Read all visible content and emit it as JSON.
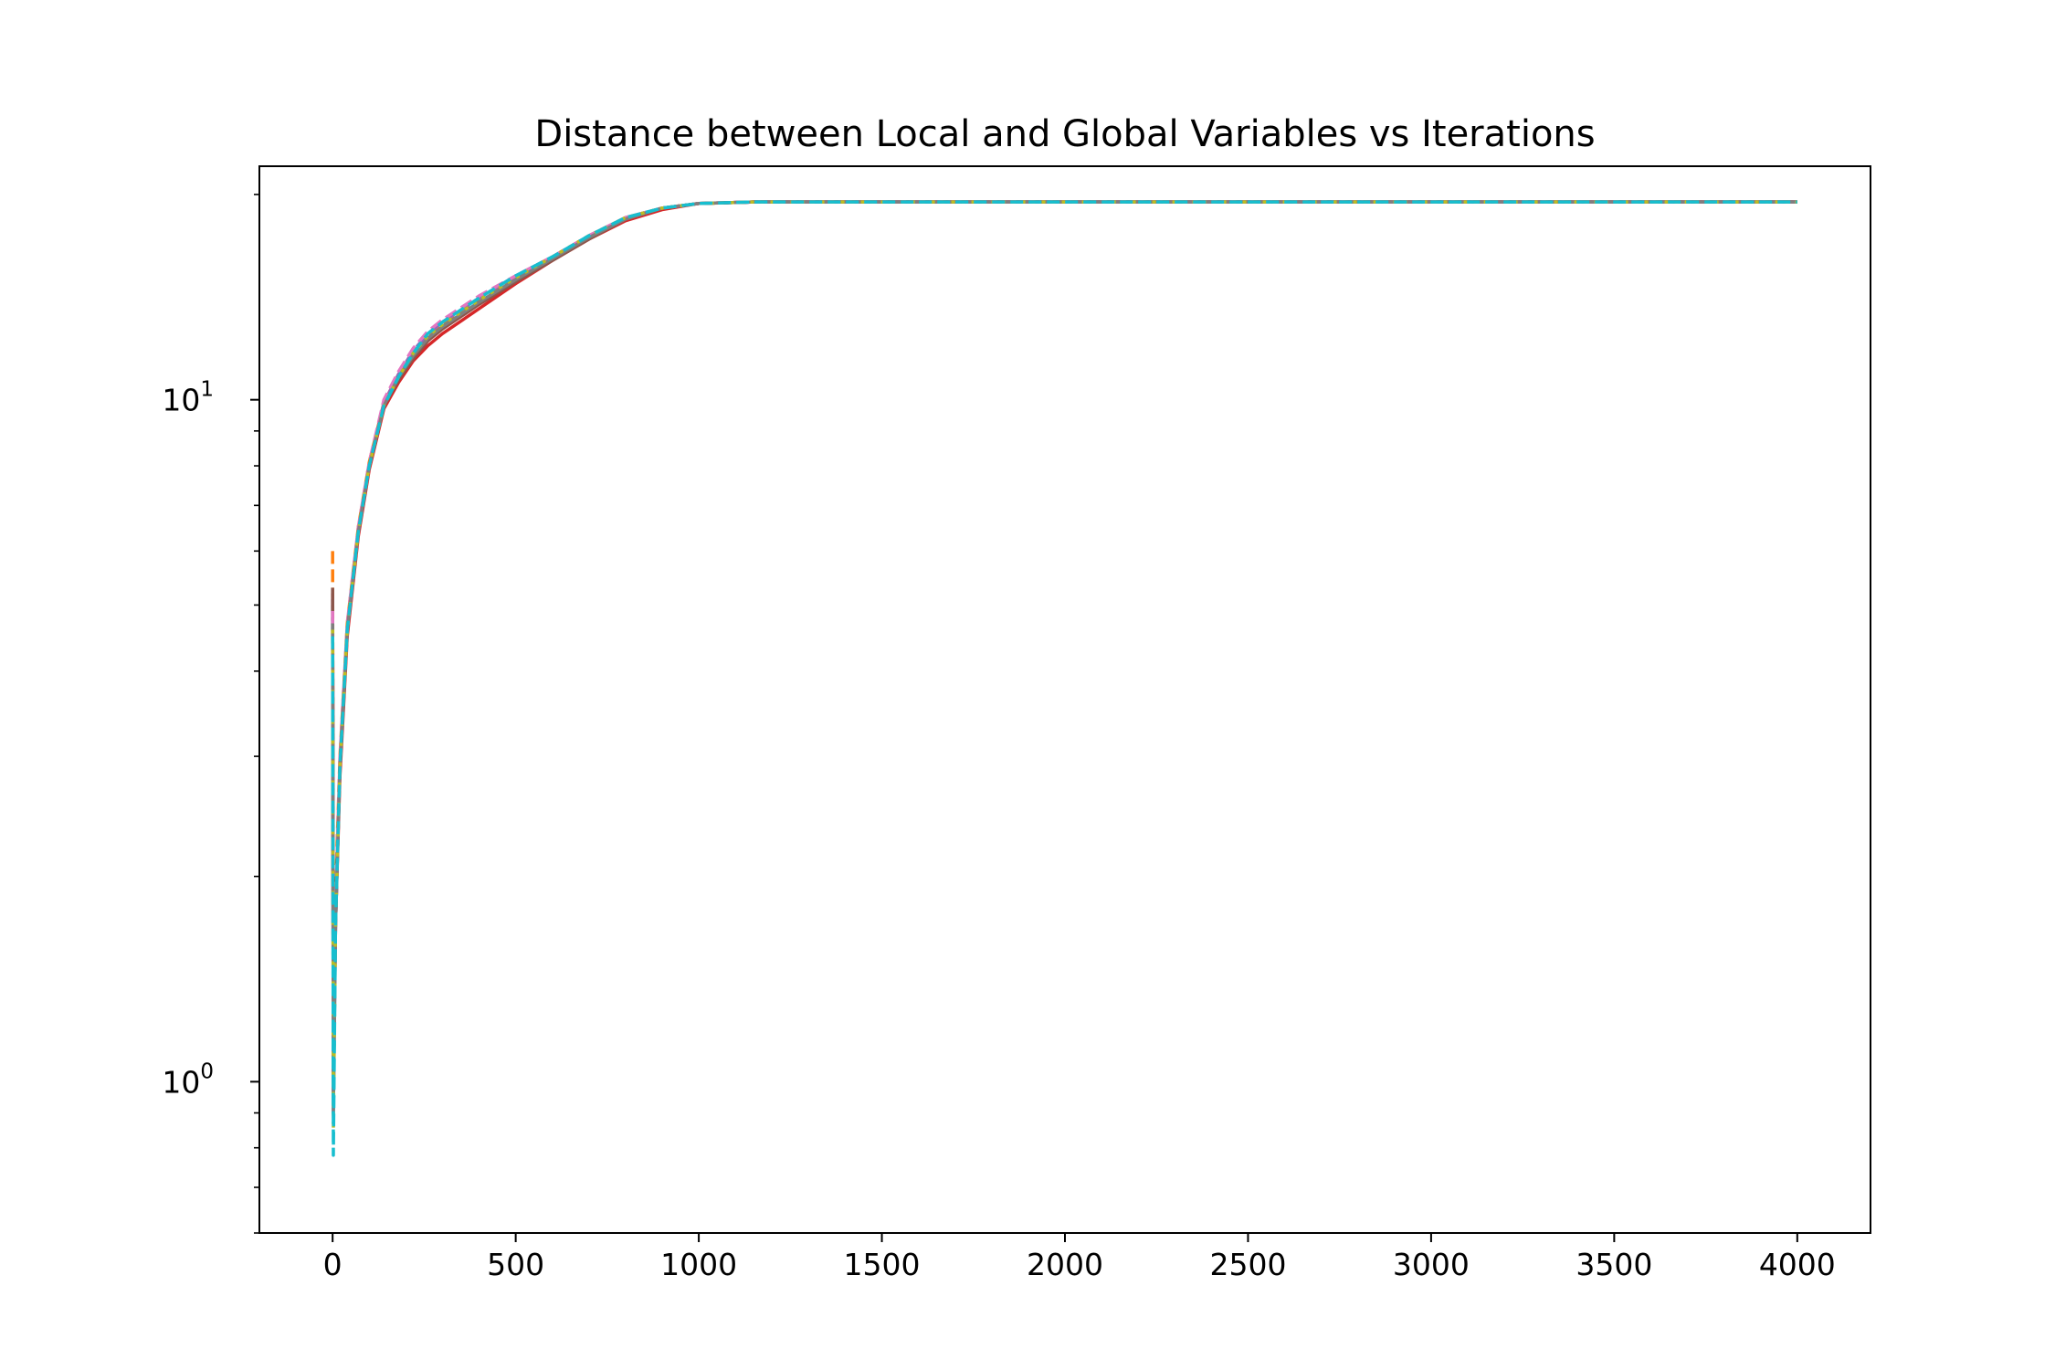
{
  "chart_data": {
    "type": "line",
    "title": "Distance between Local and Global Variables vs Iterations",
    "xlabel": "",
    "ylabel": "",
    "xlim": [
      -200,
      4200
    ],
    "ylim": [
      0.6,
      22
    ],
    "yscale": "log",
    "grid": false,
    "legend": "none",
    "x_ticks": [
      0,
      500,
      1000,
      1500,
      2000,
      2500,
      3000,
      3500,
      4000
    ],
    "x_tick_labels": [
      "0",
      "500",
      "1000",
      "1500",
      "2000",
      "2500",
      "3000",
      "3500",
      "4000"
    ],
    "y_ticks": [
      1,
      10
    ],
    "y_tick_labels": [
      {
        "base": "10",
        "exp": "0"
      },
      {
        "base": "10",
        "exp": "1"
      }
    ],
    "series": [
      {
        "color": "#1f77b4",
        "style": "solid",
        "x": [
          0,
          2,
          8,
          20,
          40,
          70,
          100,
          140,
          180,
          220,
          260,
          300,
          400,
          500,
          600,
          700,
          800,
          900,
          1000,
          1150,
          1500,
          2000,
          2500,
          3000,
          3500,
          4000
        ],
        "y": [
          5.0,
          0.9,
          1.7,
          2.9,
          4.6,
          6.4,
          8.0,
          9.8,
          10.8,
          11.6,
          12.3,
          12.8,
          13.9,
          15.0,
          16.1,
          17.3,
          18.4,
          19.1,
          19.4,
          19.5,
          19.5,
          19.5,
          19.5,
          19.5,
          19.5,
          19.5
        ]
      },
      {
        "color": "#ff7f0e",
        "style": "dashed",
        "x": [
          0,
          2,
          8,
          20,
          40,
          70,
          100,
          140,
          180,
          220,
          260,
          300,
          400,
          500,
          600,
          700,
          800,
          900,
          1000,
          1150,
          1500,
          2000,
          2500,
          3000,
          3500,
          4000
        ],
        "y": [
          6.0,
          1.2,
          1.9,
          3.0,
          4.7,
          6.5,
          8.1,
          9.9,
          10.9,
          11.7,
          12.4,
          12.9,
          14.0,
          15.1,
          16.2,
          17.4,
          18.5,
          19.1,
          19.4,
          19.5,
          19.5,
          19.5,
          19.5,
          19.5,
          19.5,
          19.5
        ]
      },
      {
        "color": "#2ca02c",
        "style": "dotted",
        "x": [
          0,
          2,
          8,
          20,
          40,
          70,
          100,
          140,
          180,
          220,
          260,
          300,
          400,
          500,
          600,
          700,
          800,
          900,
          1000,
          1150,
          1500,
          2000,
          2500,
          3000,
          3500,
          4000
        ],
        "y": [
          4.8,
          1.0,
          1.8,
          2.9,
          4.6,
          6.4,
          8.0,
          9.8,
          10.8,
          11.6,
          12.3,
          12.8,
          13.9,
          15.0,
          16.1,
          17.3,
          18.4,
          19.1,
          19.4,
          19.5,
          19.5,
          19.5,
          19.5,
          19.5,
          19.5,
          19.5
        ]
      },
      {
        "color": "#d62728",
        "style": "solid",
        "x": [
          0,
          2,
          8,
          20,
          40,
          70,
          100,
          140,
          180,
          220,
          260,
          300,
          400,
          500,
          600,
          700,
          800,
          900,
          1000,
          1150,
          1500,
          2000,
          2500,
          3000,
          3500,
          4000
        ],
        "y": [
          5.2,
          1.0,
          1.7,
          2.8,
          4.5,
          6.3,
          7.9,
          9.7,
          10.6,
          11.4,
          12.0,
          12.5,
          13.6,
          14.8,
          16.0,
          17.2,
          18.3,
          19.0,
          19.4,
          19.5,
          19.5,
          19.5,
          19.5,
          19.5,
          19.5,
          19.5
        ]
      },
      {
        "color": "#9467bd",
        "style": "dashed",
        "x": [
          0,
          2,
          8,
          20,
          40,
          70,
          100,
          140,
          180,
          220,
          260,
          300,
          400,
          500,
          600,
          700,
          800,
          900,
          1000,
          1150,
          1500,
          2000,
          2500,
          3000,
          3500,
          4000
        ],
        "y": [
          5.1,
          0.95,
          1.7,
          2.9,
          4.6,
          6.4,
          8.0,
          9.9,
          10.9,
          11.8,
          12.5,
          13.0,
          14.1,
          15.2,
          16.2,
          17.4,
          18.5,
          19.1,
          19.4,
          19.5,
          19.5,
          19.5,
          19.5,
          19.5,
          19.5,
          19.5
        ]
      },
      {
        "color": "#8c564b",
        "style": "solid",
        "x": [
          0,
          2,
          8,
          20,
          40,
          70,
          100,
          140,
          180,
          220,
          260,
          300,
          400,
          500,
          600,
          700,
          800,
          900,
          1000,
          1150,
          1500,
          2000,
          2500,
          3000,
          3500,
          4000
        ],
        "y": [
          5.3,
          1.0,
          1.8,
          2.9,
          4.6,
          6.4,
          8.0,
          9.8,
          10.7,
          11.5,
          12.2,
          12.7,
          13.8,
          14.9,
          16.0,
          17.2,
          18.4,
          19.1,
          19.4,
          19.5,
          19.5,
          19.5,
          19.5,
          19.5,
          19.5,
          19.5
        ]
      },
      {
        "color": "#e377c2",
        "style": "dashed",
        "x": [
          0,
          2,
          8,
          20,
          40,
          70,
          100,
          140,
          180,
          220,
          260,
          300,
          400,
          500,
          600,
          700,
          800,
          900,
          1000,
          1150,
          1500,
          2000,
          2500,
          3000,
          3500,
          4000
        ],
        "y": [
          4.9,
          1.0,
          1.8,
          3.0,
          4.7,
          6.5,
          8.1,
          10.0,
          11.0,
          11.9,
          12.6,
          13.1,
          14.2,
          15.2,
          16.2,
          17.4,
          18.5,
          19.1,
          19.4,
          19.5,
          19.5,
          19.5,
          19.5,
          19.5,
          19.5,
          19.5
        ]
      },
      {
        "color": "#7f7f7f",
        "style": "solid",
        "x": [
          0,
          2,
          8,
          20,
          40,
          70,
          100,
          140,
          180,
          220,
          260,
          300,
          400,
          500,
          600,
          700,
          800,
          900,
          1000,
          1150,
          1500,
          2000,
          2500,
          3000,
          3500,
          4000
        ],
        "y": [
          4.7,
          0.9,
          1.7,
          2.9,
          4.6,
          6.4,
          8.0,
          9.8,
          10.8,
          11.6,
          12.3,
          12.8,
          13.9,
          15.0,
          16.1,
          17.3,
          18.4,
          19.1,
          19.4,
          19.5,
          19.5,
          19.5,
          19.5,
          19.5,
          19.5,
          19.5
        ]
      },
      {
        "color": "#bcbd22",
        "style": "dotted",
        "x": [
          0,
          2,
          8,
          20,
          40,
          70,
          100,
          140,
          180,
          220,
          260,
          300,
          400,
          500,
          600,
          700,
          800,
          900,
          1000,
          1150,
          1500,
          2000,
          2500,
          3000,
          3500,
          4000
        ],
        "y": [
          4.6,
          0.85,
          1.7,
          2.9,
          4.6,
          6.4,
          8.0,
          9.8,
          10.8,
          11.7,
          12.4,
          12.9,
          14.0,
          15.1,
          16.2,
          17.4,
          18.5,
          19.1,
          19.4,
          19.5,
          19.5,
          19.5,
          19.5,
          19.5,
          19.5,
          19.5
        ]
      },
      {
        "color": "#17becf",
        "style": "dashed",
        "x": [
          0,
          2,
          8,
          20,
          40,
          70,
          100,
          140,
          180,
          220,
          260,
          300,
          400,
          500,
          600,
          700,
          800,
          900,
          1000,
          1150,
          1500,
          2000,
          2500,
          3000,
          3500,
          4000
        ],
        "y": [
          4.5,
          0.78,
          1.7,
          2.9,
          4.6,
          6.4,
          8.0,
          9.8,
          10.8,
          11.7,
          12.5,
          13.0,
          14.1,
          15.2,
          16.2,
          17.4,
          18.5,
          19.1,
          19.4,
          19.5,
          19.5,
          19.5,
          19.5,
          19.5,
          19.5,
          19.5
        ]
      }
    ]
  }
}
